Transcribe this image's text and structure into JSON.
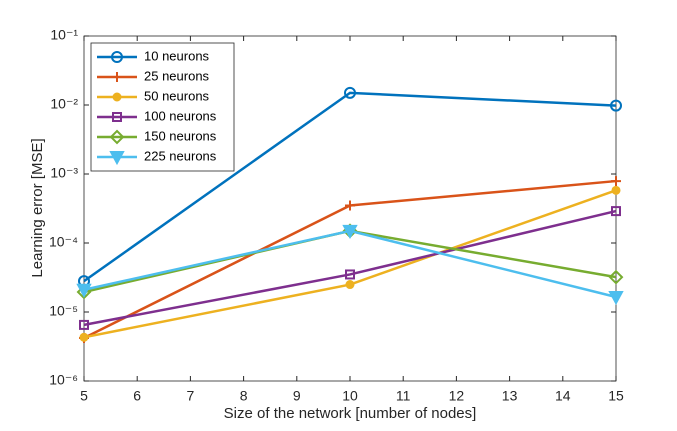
{
  "chart_data": {
    "type": "line",
    "xlabel": "Size of the network [number of nodes]",
    "ylabel": "Learning error [MSE]",
    "x": [
      5,
      10,
      15
    ],
    "xlim": [
      5,
      15
    ],
    "xticks": [
      5,
      6,
      7,
      8,
      9,
      10,
      11,
      12,
      13,
      14,
      15
    ],
    "ylim": [
      1e-06,
      0.1
    ],
    "yscale": "log",
    "yticks": [
      {
        "value": 1e-06,
        "label": "10⁻⁶"
      },
      {
        "value": 1e-05,
        "label": "10⁻⁵"
      },
      {
        "value": 0.0001,
        "label": "10⁻⁴"
      },
      {
        "value": 0.001,
        "label": "10⁻³"
      },
      {
        "value": 0.01,
        "label": "10⁻²"
      },
      {
        "value": 0.1,
        "label": "10⁻¹"
      }
    ],
    "legend": "upper left",
    "series": [
      {
        "name": "10 neurons",
        "color": "#0072BD",
        "marker": "circle",
        "values": [
          2.8e-05,
          0.015,
          0.0098
        ]
      },
      {
        "name": "25 neurons",
        "color": "#D95319",
        "marker": "plus",
        "values": [
          4.2e-06,
          0.00035,
          0.00079
        ]
      },
      {
        "name": "50 neurons",
        "color": "#EDB120",
        "marker": "dot",
        "values": [
          4.3e-06,
          2.5e-05,
          0.00058
        ]
      },
      {
        "name": "100 neurons",
        "color": "#7E2F8E",
        "marker": "square",
        "values": [
          6.5e-06,
          3.5e-05,
          0.00029
        ]
      },
      {
        "name": "150 neurons",
        "color": "#77AC30",
        "marker": "diamond",
        "values": [
          1.95e-05,
          0.00015,
          3.2e-05
        ]
      },
      {
        "name": "225 neurons",
        "color": "#4DBEEE",
        "marker": "triangle-down",
        "values": [
          2.1e-05,
          0.00015,
          1.65e-05
        ]
      }
    ]
  }
}
